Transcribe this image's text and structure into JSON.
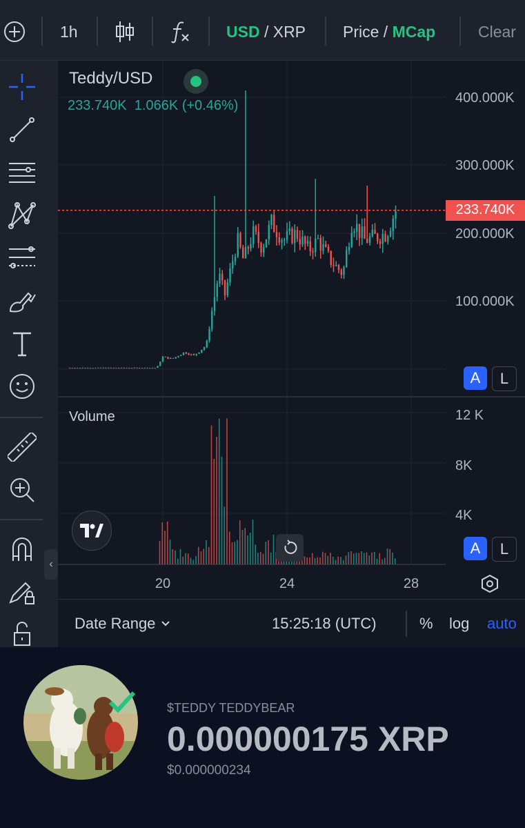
{
  "toolbar": {
    "interval": "1h",
    "currency_primary": "USD",
    "currency_sep": " / ",
    "currency_secondary": "XRP",
    "metric_primary": "Price",
    "metric_sep": " / ",
    "metric_secondary": "MCap",
    "clear_label": "Clear",
    "icons": [
      "add-circle-icon",
      "candlestick-icon",
      "function-icon"
    ]
  },
  "left_tools": [
    "crosshair-icon",
    "trendline-icon",
    "horizontal-lines-icon",
    "pattern-icon",
    "fib-icon",
    "brush-icon",
    "text-icon",
    "emoji-icon",
    "ruler-icon",
    "zoom-in-icon",
    "magnet-icon",
    "lock-draw-icon",
    "lock-icon"
  ],
  "legend": {
    "symbol": "Teddy/USD",
    "price": "233.740K",
    "change": "1.066K",
    "change_pct": "(+0.46%)"
  },
  "price_axis": {
    "labels": [
      "400.000K",
      "300.000K",
      "200.000K",
      "100.000K"
    ],
    "current_price_label": "233.740K",
    "current_price_value": 233.74,
    "range": [
      0,
      420
    ]
  },
  "volume_axis": {
    "title": "Volume",
    "labels": [
      "12 K",
      "8K",
      "4K"
    ],
    "range": [
      0,
      12
    ]
  },
  "time_axis": {
    "labels": [
      "20",
      "24",
      "28"
    ]
  },
  "scale_buttons": {
    "auto": "A",
    "log": "L"
  },
  "bottom_bar": {
    "date_range": "Date Range",
    "time": "15:25:18 (UTC)",
    "percent": "%",
    "log": "log",
    "auto": "auto"
  },
  "coin": {
    "ticker": "$TEDDY TEDDYBEAR",
    "price_xrp": "0.000000175 XRP",
    "price_usd": "$0.000000234"
  },
  "colors": {
    "up": "#26a69a",
    "down": "#ef5350",
    "accent": "#2962ff",
    "green_text": "#26c281"
  },
  "chart_data": {
    "type": "candlestick",
    "x_axis_ticks": [
      "20",
      "24",
      "28"
    ],
    "ylim": [
      0,
      420
    ],
    "y_unit": "K USD (market cap)",
    "close_series_approx": [
      {
        "day": 17.0,
        "v": 2
      },
      {
        "day": 18.0,
        "v": 2
      },
      {
        "day": 19.0,
        "v": 2
      },
      {
        "day": 19.8,
        "v": 2
      },
      {
        "day": 20.0,
        "v": 18
      },
      {
        "day": 20.3,
        "v": 15
      },
      {
        "day": 20.7,
        "v": 25
      },
      {
        "day": 21.0,
        "v": 20
      },
      {
        "day": 21.4,
        "v": 35
      },
      {
        "day": 21.6,
        "v": 90
      },
      {
        "day": 21.8,
        "v": 140
      },
      {
        "day": 22.0,
        "v": 110
      },
      {
        "day": 22.4,
        "v": 190
      },
      {
        "day": 22.6,
        "v": 160
      },
      {
        "day": 22.9,
        "v": 200
      },
      {
        "day": 23.2,
        "v": 180
      },
      {
        "day": 23.5,
        "v": 215
      },
      {
        "day": 23.9,
        "v": 190
      },
      {
        "day": 24.3,
        "v": 200
      },
      {
        "day": 24.7,
        "v": 175
      },
      {
        "day": 25.0,
        "v": 190
      },
      {
        "day": 25.4,
        "v": 160
      },
      {
        "day": 25.8,
        "v": 140
      },
      {
        "day": 26.1,
        "v": 220
      },
      {
        "day": 26.5,
        "v": 190
      },
      {
        "day": 26.9,
        "v": 195
      },
      {
        "day": 27.2,
        "v": 200
      },
      {
        "day": 27.5,
        "v": 233.74
      }
    ],
    "notable_wicks": [
      {
        "day": 21.7,
        "high": 255
      },
      {
        "day": 22.7,
        "high": 410
      },
      {
        "day": 24.9,
        "high": 280
      },
      {
        "day": 26.6,
        "high": 270
      }
    ],
    "volume_k_approx": [
      {
        "day": 20.0,
        "v": 3.5
      },
      {
        "day": 20.5,
        "v": 1.5
      },
      {
        "day": 21.0,
        "v": 1.0
      },
      {
        "day": 21.4,
        "v": 2.0
      },
      {
        "day": 21.8,
        "v": 12.0
      },
      {
        "day": 22.0,
        "v": 4.0
      },
      {
        "day": 22.4,
        "v": 3.0
      },
      {
        "day": 22.7,
        "v": 3.8
      },
      {
        "day": 23.2,
        "v": 2.0
      },
      {
        "day": 23.8,
        "v": 2.5
      },
      {
        "day": 24.4,
        "v": 1.5
      },
      {
        "day": 25.0,
        "v": 1.5
      },
      {
        "day": 25.6,
        "v": 1.0
      },
      {
        "day": 26.2,
        "v": 1.2
      },
      {
        "day": 26.8,
        "v": 1.0
      },
      {
        "day": 27.4,
        "v": 1.5
      }
    ]
  }
}
